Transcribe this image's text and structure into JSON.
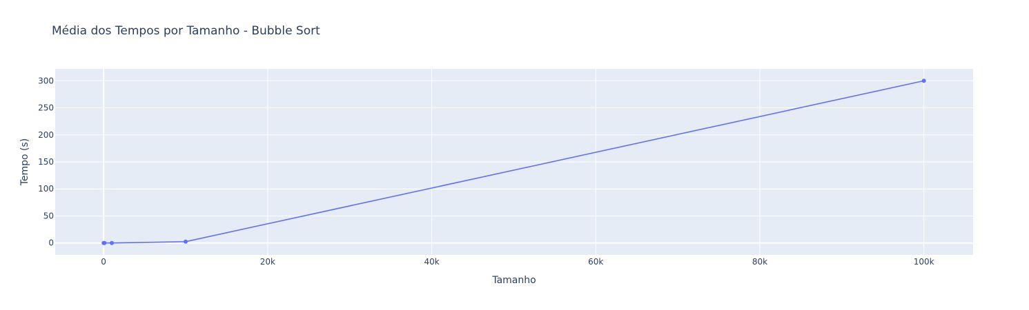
{
  "chart_data": {
    "type": "line",
    "title": "Média dos Tempos por Tamanho - Bubble Sort",
    "xlabel": "Tamanho",
    "ylabel": "Tempo (s)",
    "xlim": [
      -5900,
      106000
    ],
    "ylim": [
      -22,
      322
    ],
    "x_ticks": [
      {
        "value": 0,
        "label": "0"
      },
      {
        "value": 20000,
        "label": "20k"
      },
      {
        "value": 40000,
        "label": "40k"
      },
      {
        "value": 60000,
        "label": "60k"
      },
      {
        "value": 80000,
        "label": "80k"
      },
      {
        "value": 100000,
        "label": "100k"
      }
    ],
    "y_ticks": [
      {
        "value": 0,
        "label": "0"
      },
      {
        "value": 50,
        "label": "50"
      },
      {
        "value": 100,
        "label": "100"
      },
      {
        "value": 150,
        "label": "150"
      },
      {
        "value": 200,
        "label": "200"
      },
      {
        "value": 250,
        "label": "250"
      },
      {
        "value": 300,
        "label": "300"
      }
    ],
    "grid": true,
    "legend": "none",
    "series": [
      {
        "color": "#636efa",
        "x": [
          10,
          100,
          1000,
          10000,
          100000
        ],
        "y": [
          0.0,
          0.01,
          0.05,
          2.5,
          300
        ]
      }
    ],
    "colors": {
      "plot_bg": "#e5ecf6",
      "grid": "#ffffff",
      "text": "#2a3f5f",
      "line": "#636efa"
    }
  }
}
